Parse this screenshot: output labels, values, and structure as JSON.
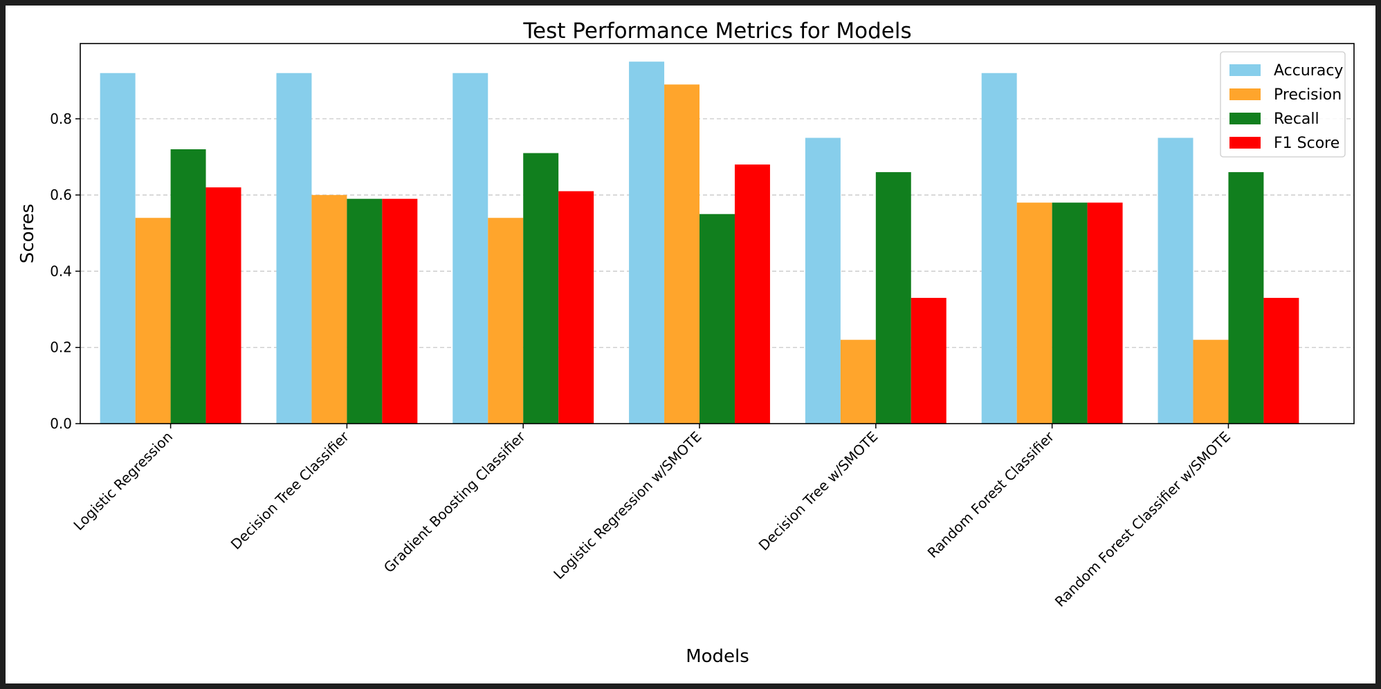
{
  "chart_data": {
    "type": "bar",
    "title": "Test Performance Metrics for Models",
    "xlabel": "Models",
    "ylabel": "Scores",
    "categories": [
      "Logistic Regression",
      "Decision Tree Classifier",
      "Gradient Boosting Classifier",
      "Logistic Regression w/SMOTE",
      "Decision Tree w/SMOTE",
      "Random Forest Classifier",
      "Random Forest Classifier w/SMOTE"
    ],
    "series": [
      {
        "name": "Accuracy",
        "color": "#87ceeb",
        "values": [
          0.92,
          0.92,
          0.92,
          0.95,
          0.75,
          0.92,
          0.75
        ]
      },
      {
        "name": "Precision",
        "color": "#ffa52c",
        "values": [
          0.54,
          0.6,
          0.54,
          0.89,
          0.22,
          0.58,
          0.22
        ]
      },
      {
        "name": "Recall",
        "color": "#117f1e",
        "values": [
          0.72,
          0.59,
          0.71,
          0.55,
          0.66,
          0.58,
          0.66
        ]
      },
      {
        "name": "F1 Score",
        "color": "#ff0000",
        "values": [
          0.62,
          0.59,
          0.61,
          0.68,
          0.33,
          0.58,
          0.33
        ]
      }
    ],
    "ylim": [
      0,
      0.9975
    ],
    "yticks": [
      0.0,
      0.2,
      0.4,
      0.6,
      0.8
    ],
    "ytick_labels": [
      "0.0",
      "0.2",
      "0.4",
      "0.6",
      "0.8"
    ],
    "grid": "y-dashed",
    "legend": "upper right"
  }
}
